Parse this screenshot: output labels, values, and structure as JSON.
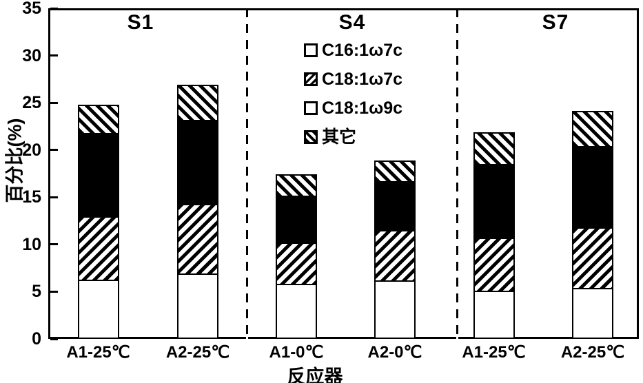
{
  "figure": {
    "background": "#ffffff",
    "foreground": "#000000",
    "y_axis": {
      "title": "百分比(%)",
      "ticks": [
        0,
        5,
        10,
        15,
        20,
        25,
        30,
        35
      ]
    },
    "x_axis": {
      "title": "反应器"
    },
    "sections": [
      {
        "label": "S1"
      },
      {
        "label": "S4"
      },
      {
        "label": "S7"
      }
    ],
    "legend": {
      "items": [
        {
          "label": "C16:1ω7c",
          "fill": "white"
        },
        {
          "label": "C18:1ω7c",
          "fill": "hatch-forward"
        },
        {
          "label": "C18:1ω9c",
          "fill": "black"
        },
        {
          "label": "其它",
          "fill": "hatch-back"
        }
      ]
    }
  },
  "chart_data": {
    "type": "bar",
    "stacked": true,
    "title": "",
    "xlabel": "反应器",
    "ylabel": "百分比(%)",
    "ylim": [
      0,
      35
    ],
    "ytick_step": 5,
    "grid": false,
    "legend_position": "upper-center-inside",
    "group_labels": [
      "S1",
      "S1",
      "S4",
      "S4",
      "S7",
      "S7"
    ],
    "group_separators": "dashed-vertical-lines",
    "categories": [
      "A1-25℃",
      "A2-25℃",
      "A1-0℃",
      "A2-0℃",
      "A1-25℃",
      "A2-25℃"
    ],
    "series": [
      {
        "name": "C16:1ω7c",
        "fill": "white",
        "values": [
          6.3,
          6.9,
          5.8,
          6.2,
          5.1,
          5.4
        ]
      },
      {
        "name": "C18:1ω7c",
        "fill": "hatch-forward",
        "values": [
          6.7,
          7.4,
          4.4,
          5.3,
          5.6,
          6.4
        ]
      },
      {
        "name": "C18:1ω9c",
        "fill": "black",
        "values": [
          8.8,
          8.9,
          5.0,
          5.2,
          7.8,
          8.6
        ]
      },
      {
        "name": "其它",
        "fill": "hatch-back",
        "values": [
          3.0,
          3.7,
          2.2,
          2.2,
          3.4,
          3.7
        ]
      }
    ],
    "stack_totals": [
      24.8,
      26.9,
      17.4,
      18.9,
      21.9,
      24.1
    ]
  }
}
